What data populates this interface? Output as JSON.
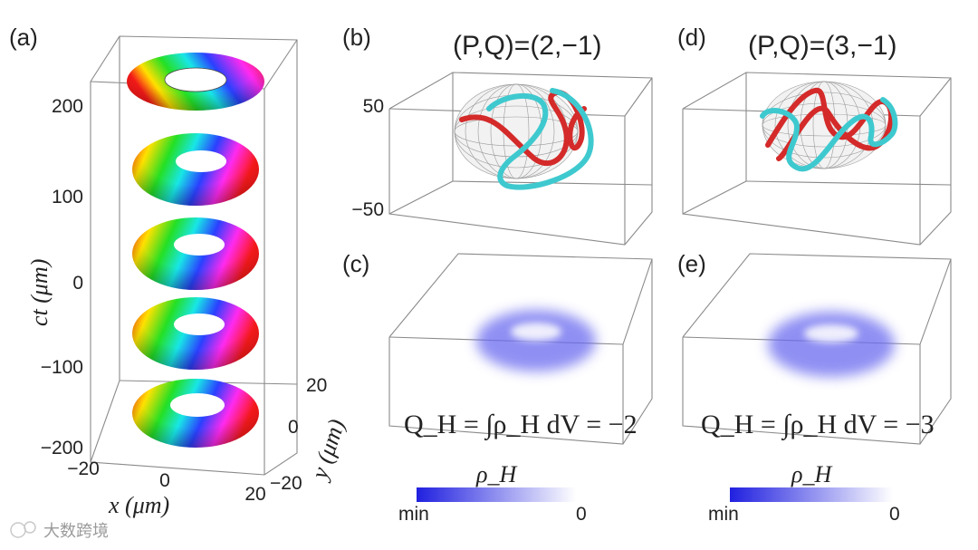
{
  "figure": {
    "panels": {
      "a": {
        "label": "(a)"
      },
      "b": {
        "label": "(b)",
        "title": "(P,Q)=(2,−1)"
      },
      "c": {
        "label": "(c)",
        "equation": "Q_H = ∫ρ_H dV = −2"
      },
      "d": {
        "label": "(d)",
        "title": "(P,Q)=(3,−1)"
      },
      "e": {
        "label": "(e)",
        "equation": "Q_H = ∫ρ_H dV = −3"
      }
    },
    "panel_a_axes": {
      "z_label": "ct (μm)",
      "z_ticks": [
        "200",
        "100",
        "0",
        "−100",
        "−200"
      ],
      "x_label": "x (μm)",
      "x_ticks": [
        "−20",
        "0",
        "20"
      ],
      "y_label": "y (μm)",
      "y_ticks": [
        "20",
        "0",
        "−20"
      ]
    },
    "panel_b_axes": {
      "z_ticks": [
        "50",
        "−50"
      ]
    },
    "colorbar": {
      "symbol": "ρ_H",
      "min_label": "min",
      "max_label": "0",
      "color_min": "#2020e0",
      "color_max": "#ffffff"
    },
    "colors": {
      "knot_red": "#d42a2a",
      "knot_cyan": "#3ec9cf",
      "density_blue": "#6a6af0",
      "box_line": "#8a8a8a"
    },
    "watermark": "大数跨境"
  }
}
